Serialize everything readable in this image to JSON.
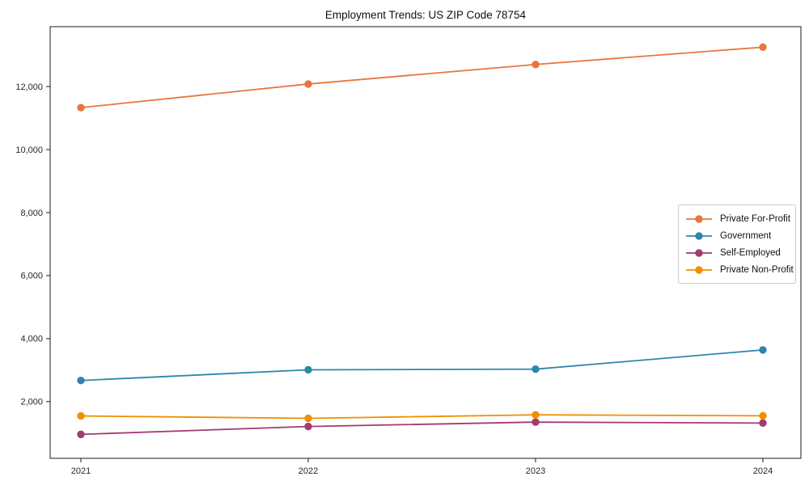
{
  "figure": {
    "background": "#ffffff",
    "axis_color": "#1a1a1a"
  },
  "chart_data": {
    "type": "line",
    "title": "Employment Trends: US ZIP Code 78754",
    "x": [
      "2021",
      "2022",
      "2023",
      "2024"
    ],
    "series": [
      {
        "name": "Private For-Profit",
        "color": "#E8763C",
        "values": [
          11330,
          12080,
          12700,
          13250
        ]
      },
      {
        "name": "Government",
        "color": "#2E86AB",
        "values": [
          2670,
          3010,
          3030,
          3640
        ]
      },
      {
        "name": "Self-Employed",
        "color": "#A23B72",
        "values": [
          960,
          1210,
          1350,
          1320
        ]
      },
      {
        "name": "Private Non-Profit",
        "color": "#F18F01",
        "values": [
          1545,
          1470,
          1580,
          1550
        ]
      }
    ],
    "xlabel": "",
    "ylabel": "",
    "ylim": [
      200,
      13900
    ],
    "yticks": [
      2000,
      4000,
      6000,
      8000,
      10000,
      12000
    ],
    "ytick_labels": [
      "2,000",
      "4,000",
      "6,000",
      "8,000",
      "10,000",
      "12,000"
    ],
    "grid": false,
    "legend_position": "center right",
    "marker": "circle"
  }
}
